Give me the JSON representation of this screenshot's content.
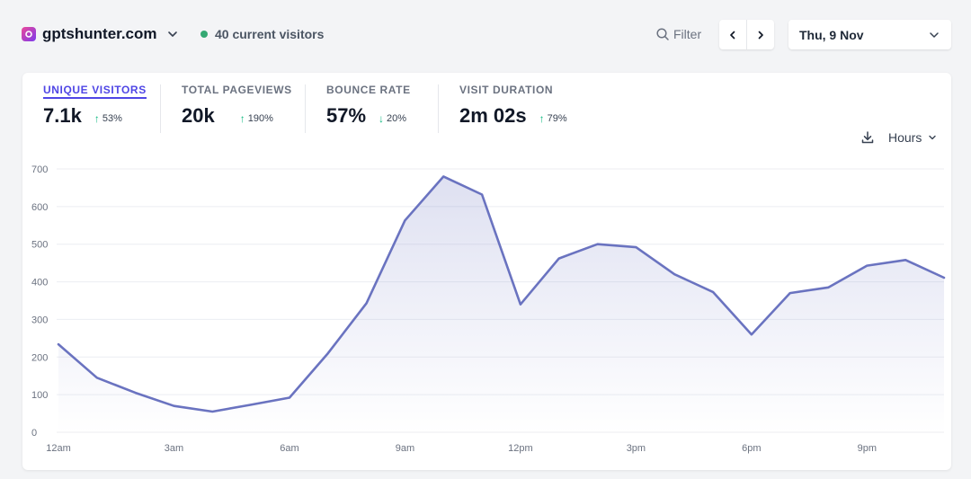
{
  "header": {
    "site_name": "gptshunter.com",
    "current_visitors": "40 current visitors",
    "filter_label": "Filter",
    "date_label": "Thu, 9 Nov",
    "colors": {
      "accent": "#4f46e5",
      "live_dot": "#34a873",
      "positive": "#10b981",
      "line": "#6a73c0"
    }
  },
  "stats": [
    {
      "label": "UNIQUE VISITORS",
      "value": "7.1k",
      "change": "53%",
      "direction": "up"
    },
    {
      "label": "TOTAL PAGEVIEWS",
      "value": "20k",
      "change": "190%",
      "direction": "up"
    },
    {
      "label": "BOUNCE RATE",
      "value": "57%",
      "change": "20%",
      "direction": "down"
    },
    {
      "label": "VISIT DURATION",
      "value": "2m 02s",
      "change": "79%",
      "direction": "up"
    }
  ],
  "controls": {
    "interval_label": "Hours",
    "download_icon": "download-icon"
  },
  "chart_data": {
    "type": "area",
    "title": "",
    "xlabel": "",
    "ylabel": "",
    "ylim": [
      0,
      700
    ],
    "y_ticks": [
      "0",
      "100",
      "200",
      "300",
      "400",
      "500",
      "600",
      "700"
    ],
    "x_tick_labels": [
      "12am",
      "3am",
      "6am",
      "9am",
      "12pm",
      "3pm",
      "6pm",
      "9pm"
    ],
    "x": [
      "12am",
      "1am",
      "2am",
      "3am",
      "4am",
      "5am",
      "6am",
      "7am",
      "8am",
      "9am",
      "10am",
      "11am",
      "12pm",
      "1pm",
      "2pm",
      "3pm",
      "4pm",
      "5pm",
      "6pm",
      "7pm",
      "8pm",
      "9pm",
      "10pm",
      "11pm"
    ],
    "series": [
      {
        "values": [
          234,
          145,
          105,
          70,
          55,
          73,
          92,
          210,
          343,
          563,
          680,
          632,
          340,
          462,
          500,
          492,
          420,
          373,
          260,
          370,
          385,
          443,
          458,
          411
        ]
      }
    ],
    "grid": true
  }
}
